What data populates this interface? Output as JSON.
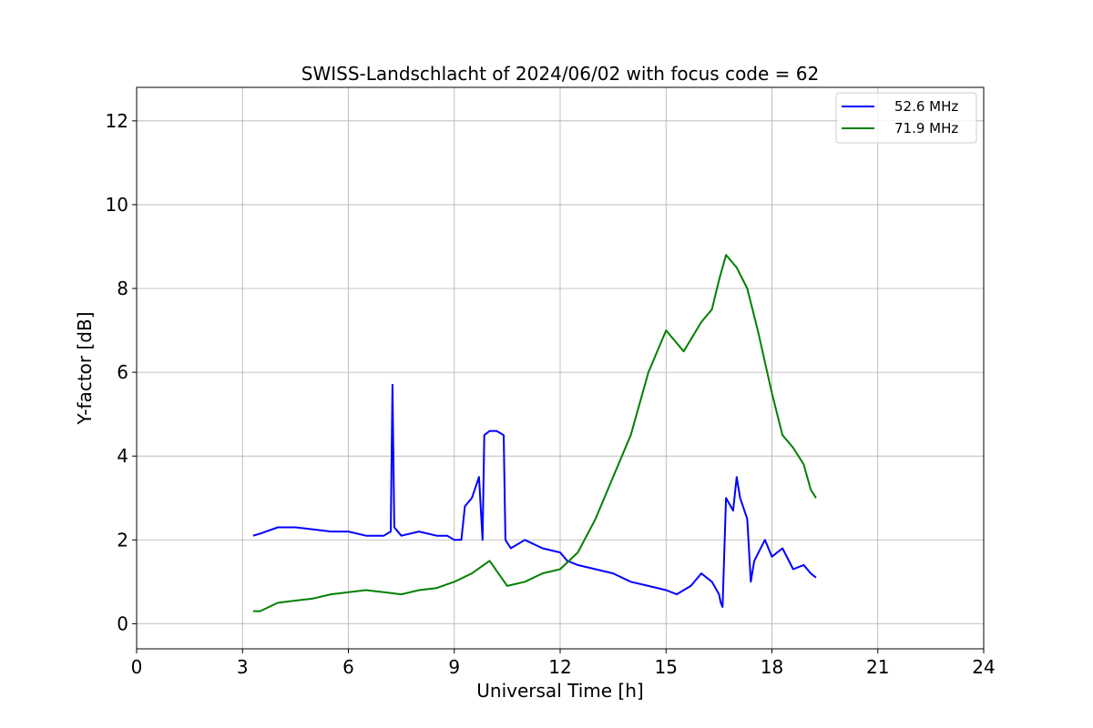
{
  "chart_data": {
    "type": "line",
    "title": "SWISS-Landschlacht of 2024/06/02 with focus code = 62",
    "xlabel": "Universal Time [h]",
    "ylabel": "Y-factor [dB]",
    "xlim": [
      0,
      24
    ],
    "ylim": [
      -0.6,
      12.8
    ],
    "xticks": [
      0,
      3,
      6,
      9,
      12,
      15,
      18,
      21,
      24
    ],
    "xtick_labels": [
      "0",
      "3",
      "6",
      "9",
      "12",
      "15",
      "18",
      "21",
      "24"
    ],
    "yticks": [
      0,
      2,
      4,
      6,
      8,
      10,
      12
    ],
    "ytick_labels": [
      "0",
      "2",
      "4",
      "6",
      "8",
      "10",
      "12"
    ],
    "grid": true,
    "legend_position": "top-right",
    "series": [
      {
        "name": "52.6 MHz",
        "color": "#0000ff",
        "x": [
          3.3,
          3.5,
          4.0,
          4.5,
          5.0,
          5.5,
          6.0,
          6.5,
          7.0,
          7.2,
          7.25,
          7.3,
          7.5,
          8.0,
          8.5,
          8.8,
          9.0,
          9.2,
          9.3,
          9.5,
          9.7,
          9.8,
          9.85,
          10.0,
          10.2,
          10.4,
          10.45,
          10.6,
          11.0,
          11.5,
          12.0,
          12.2,
          12.5,
          13.0,
          13.5,
          14.0,
          14.5,
          15.0,
          15.3,
          15.7,
          16.0,
          16.3,
          16.5,
          16.55,
          16.6,
          16.7,
          16.9,
          17.0,
          17.1,
          17.3,
          17.4,
          17.5,
          17.8,
          18.0,
          18.3,
          18.6,
          18.9,
          19.1,
          19.25
        ],
        "y": [
          2.1,
          2.15,
          2.3,
          2.3,
          2.25,
          2.2,
          2.2,
          2.1,
          2.1,
          2.2,
          5.7,
          2.3,
          2.1,
          2.2,
          2.1,
          2.1,
          2.0,
          2.0,
          2.8,
          3.0,
          3.5,
          2.0,
          4.5,
          4.6,
          4.6,
          4.5,
          2.0,
          1.8,
          2.0,
          1.8,
          1.7,
          1.5,
          1.4,
          1.3,
          1.2,
          1.0,
          0.9,
          0.8,
          0.7,
          0.9,
          1.2,
          1.0,
          0.7,
          0.5,
          0.4,
          3.0,
          2.7,
          3.5,
          3.0,
          2.5,
          1.0,
          1.5,
          2.0,
          1.6,
          1.8,
          1.3,
          1.4,
          1.2,
          1.1
        ]
      },
      {
        "name": "71.9 MHz",
        "color": "#008000",
        "x": [
          3.3,
          3.5,
          4.0,
          4.5,
          5.0,
          5.5,
          6.0,
          6.5,
          7.0,
          7.5,
          8.0,
          8.5,
          9.0,
          9.5,
          10.0,
          10.5,
          11.0,
          11.5,
          12.0,
          12.5,
          13.0,
          13.5,
          14.0,
          14.5,
          15.0,
          15.5,
          16.0,
          16.3,
          16.5,
          16.7,
          17.0,
          17.3,
          17.6,
          18.0,
          18.3,
          18.6,
          18.9,
          19.1,
          19.25
        ],
        "y": [
          0.3,
          0.3,
          0.5,
          0.55,
          0.6,
          0.7,
          0.75,
          0.8,
          0.75,
          0.7,
          0.8,
          0.85,
          1.0,
          1.2,
          1.5,
          0.9,
          1.0,
          1.2,
          1.3,
          1.7,
          2.5,
          3.5,
          4.5,
          6.0,
          7.0,
          6.5,
          7.2,
          7.5,
          8.2,
          8.8,
          8.5,
          8.0,
          7.0,
          5.5,
          4.5,
          4.2,
          3.8,
          3.2,
          3.0
        ]
      }
    ]
  }
}
